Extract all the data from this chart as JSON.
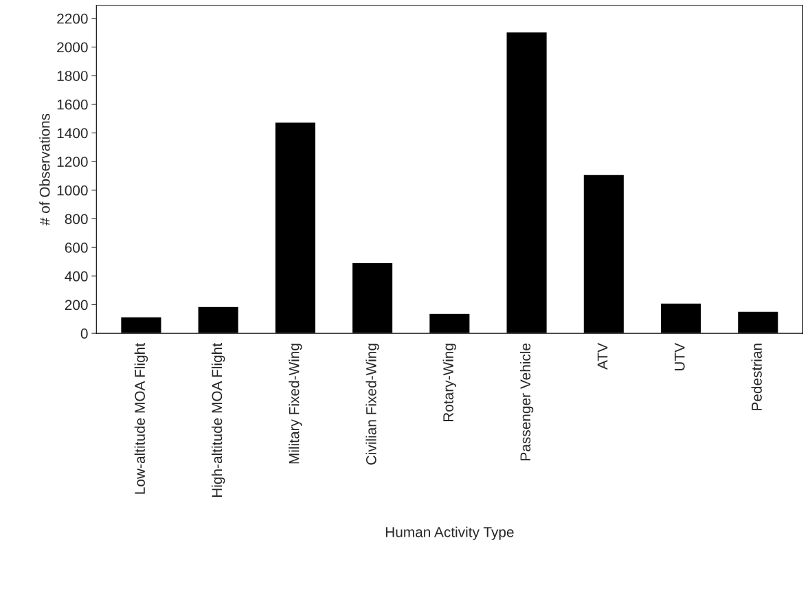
{
  "chart_data": {
    "type": "bar",
    "xlabel": "Human Activity Type",
    "ylabel": "# of Observations",
    "categories": [
      "Low-altitude MOA Flight",
      "High-altitude MOA Flight",
      "Military Fixed-Wing",
      "Civilian Fixed-Wing",
      "Rotary-Wing",
      "Passenger Vehicle",
      "ATV",
      "UTV",
      "Pedestrian"
    ],
    "values": [
      115,
      187,
      1475,
      494,
      139,
      2105,
      1109,
      211,
      154
    ],
    "color": "#000000",
    "ylim": [
      0,
      2290
    ],
    "yticks": [
      0,
      200,
      400,
      600,
      800,
      1000,
      1200,
      1400,
      1600,
      1800,
      2000,
      2200
    ],
    "grid": false
  }
}
